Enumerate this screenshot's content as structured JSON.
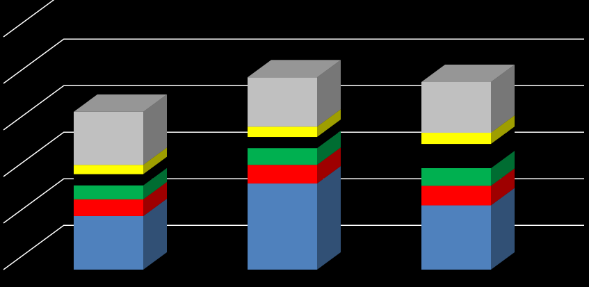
{
  "chart_data": {
    "type": "bar",
    "stacked": true,
    "style": "3d-column",
    "background": "#000000",
    "grid": true,
    "grid_color": "#ffffff",
    "legend": "none",
    "title": "",
    "xlabel": "",
    "ylabel": "",
    "ylim": [
      0,
      6
    ],
    "grid_lines": [
      0,
      1,
      2,
      3,
      4,
      5,
      6
    ],
    "categories": [
      "",
      "",
      ""
    ],
    "series": [
      {
        "color": "#4f81bd",
        "values": [
          1.15,
          1.85,
          1.38
        ]
      },
      {
        "color": "#ff0000",
        "values": [
          0.36,
          0.4,
          0.42
        ]
      },
      {
        "color": "#00b050",
        "values": [
          0.3,
          0.36,
          0.38
        ]
      },
      {
        "color": "#000000",
        "values": [
          0.24,
          0.24,
          0.52
        ]
      },
      {
        "color": "#ffff00",
        "values": [
          0.2,
          0.22,
          0.24
        ]
      },
      {
        "color": "#c0c0c0",
        "values": [
          1.14,
          1.06,
          1.09
        ]
      }
    ]
  }
}
